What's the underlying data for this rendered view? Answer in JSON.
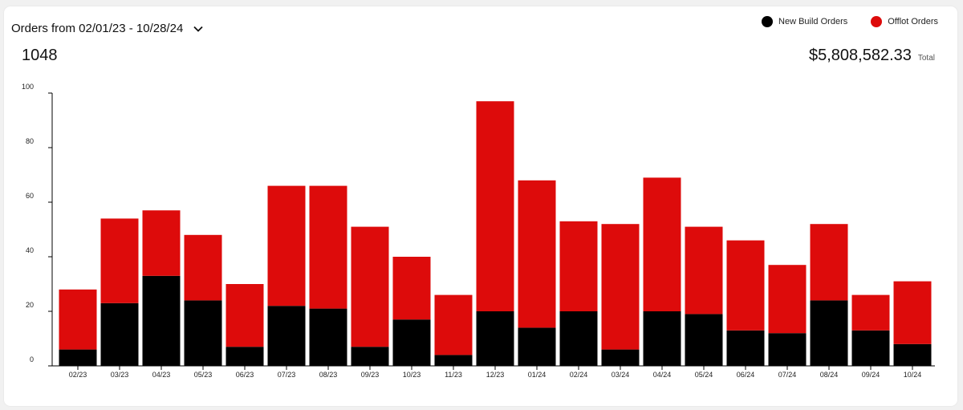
{
  "header": {
    "range_label": "Orders from 02/01/23 - 10/28/24",
    "total_count": "1048",
    "total_amount": "$5,808,582.33",
    "total_label": "Total"
  },
  "legend": {
    "items": [
      {
        "label": "New Build Orders",
        "color": "#000000"
      },
      {
        "label": "Offlot Orders",
        "color": "#dd0b0b"
      }
    ]
  },
  "chart_data": {
    "type": "bar",
    "stacked": true,
    "categories": [
      "02/23",
      "03/23",
      "04/23",
      "05/23",
      "06/23",
      "07/23",
      "08/23",
      "09/23",
      "10/23",
      "11/23",
      "12/23",
      "01/24",
      "02/24",
      "03/24",
      "04/24",
      "05/24",
      "06/24",
      "07/24",
      "08/24",
      "09/24",
      "10/24"
    ],
    "series": [
      {
        "name": "New Build Orders",
        "color": "#000000",
        "values": [
          6,
          23,
          33,
          24,
          7,
          22,
          21,
          7,
          17,
          4,
          20,
          14,
          20,
          6,
          20,
          19,
          13,
          12,
          24,
          13,
          8
        ]
      },
      {
        "name": "Offlot Orders",
        "color": "#dd0b0b",
        "values": [
          22,
          31,
          24,
          24,
          23,
          44,
          45,
          44,
          23,
          22,
          77,
          54,
          33,
          46,
          49,
          32,
          33,
          25,
          28,
          13,
          23
        ]
      }
    ],
    "ylim": [
      0,
      100
    ],
    "yticks": [
      0,
      20,
      40,
      60,
      80,
      100
    ],
    "grid": false,
    "legend_position": "top-right"
  }
}
